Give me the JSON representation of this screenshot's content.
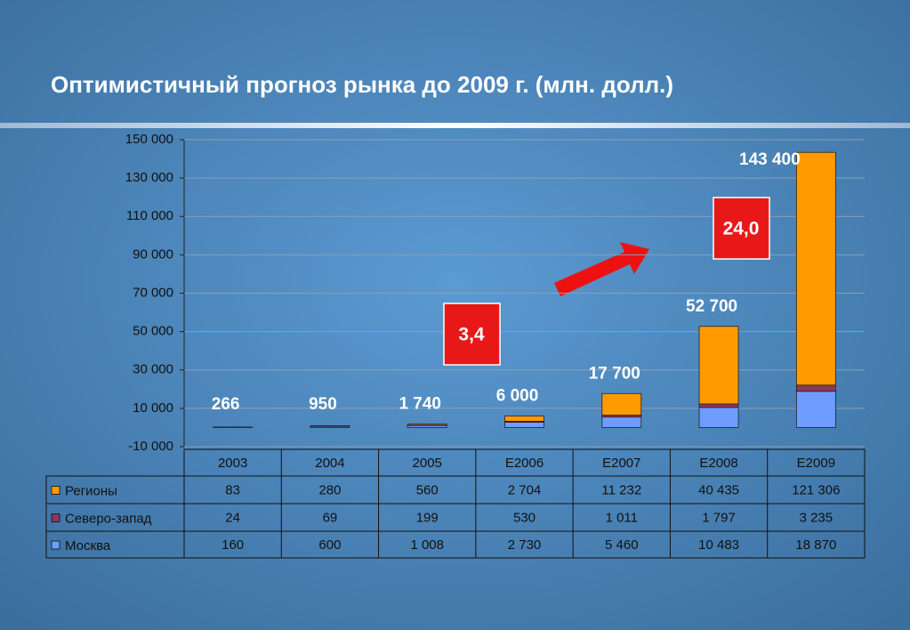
{
  "chart_data": {
    "type": "stacked-bar",
    "title": "Оптимистичный  прогноз рынка до 2009 г. (млн. долл.)",
    "categories": [
      "2003",
      "2004",
      "2005",
      "E2006",
      "E2007",
      "E2008",
      "E2009"
    ],
    "series": [
      {
        "name": "Москва",
        "color": "#6f9cff",
        "values": [
          160,
          600,
          1008,
          2730,
          5460,
          10483,
          18870
        ],
        "value_labels": [
          "160",
          "600",
          "1 008",
          "2 730",
          "5 460",
          "10 483",
          "18 870"
        ]
      },
      {
        "name": "Северо-запад",
        "color": "#8e3562",
        "values": [
          24,
          69,
          199,
          530,
          1011,
          1797,
          3235
        ],
        "value_labels": [
          "24",
          "69",
          "199",
          "530",
          "1 011",
          "1 797",
          "3 235"
        ]
      },
      {
        "name": "Регионы",
        "color": "#ff9a00",
        "values": [
          83,
          280,
          560,
          2704,
          11232,
          40435,
          121306
        ],
        "value_labels": [
          "83",
          "280",
          "560",
          "2 704",
          "11 232",
          "40 435",
          "121 306"
        ]
      }
    ],
    "totals": {
      "values": [
        266,
        950,
        1740,
        6000,
        17700,
        52700,
        143400
      ],
      "value_labels": [
        "266",
        "950",
        "1 740",
        "6 000",
        "17 700",
        "52 700",
        "143 400"
      ]
    },
    "annotations": [
      {
        "text": "3,4"
      },
      {
        "text": "24,0"
      }
    ],
    "ylim": [
      -10000,
      150000
    ],
    "yticks": [
      {
        "value": -10000,
        "label": "-10 000"
      },
      {
        "value": 10000,
        "label": "10 000"
      },
      {
        "value": 30000,
        "label": "30 000"
      },
      {
        "value": 50000,
        "label": "50 000"
      },
      {
        "value": 70000,
        "label": "70 000"
      },
      {
        "value": 90000,
        "label": "90 000"
      },
      {
        "value": 110000,
        "label": "110 000"
      },
      {
        "value": 130000,
        "label": "130 000"
      },
      {
        "value": 150000,
        "label": "150 000"
      }
    ],
    "grid": true
  }
}
